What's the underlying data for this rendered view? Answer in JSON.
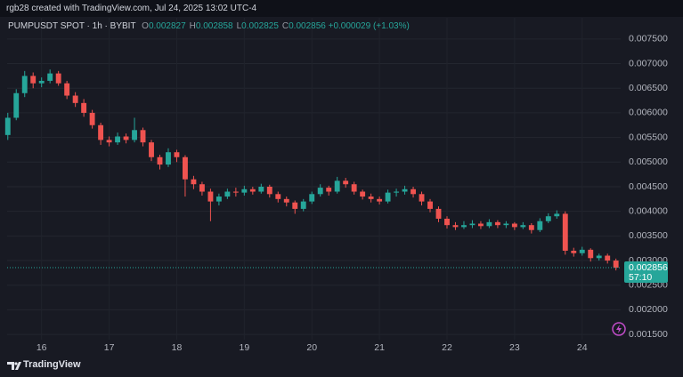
{
  "header": {
    "credit": "rgb28 created with TradingView.com, Jul 24, 2025 13:02 UTC-4"
  },
  "chart_data": {
    "type": "candlestick",
    "symbol": "PUMPUSDT SPOT · 1h · BYBIT",
    "ohlc_legend": [
      {
        "label": "O",
        "value": "0.002827"
      },
      {
        "label": "H",
        "value": "0.002858"
      },
      {
        "label": "L",
        "value": "0.002825"
      },
      {
        "label": "C",
        "value": "0.002856"
      }
    ],
    "change": "+0.000029 (+1.03%)",
    "up_color": "#26a69a",
    "down_color": "#ef5350",
    "x": [
      15.5,
      15.625,
      15.75,
      15.875,
      16,
      16.125,
      16.25,
      16.375,
      16.5,
      16.625,
      16.75,
      16.875,
      17,
      17.125,
      17.25,
      17.375,
      17.5,
      17.625,
      17.75,
      17.875,
      18,
      18.125,
      18.25,
      18.375,
      18.5,
      18.625,
      18.75,
      18.875,
      19,
      19.125,
      19.25,
      19.375,
      19.5,
      19.625,
      19.75,
      19.875,
      20,
      20.125,
      20.25,
      20.375,
      20.5,
      20.625,
      20.75,
      20.875,
      21,
      21.125,
      21.25,
      21.375,
      21.5,
      21.625,
      21.75,
      21.875,
      22,
      22.125,
      22.25,
      22.375,
      22.5,
      22.625,
      22.75,
      22.875,
      23,
      23.125,
      23.25,
      23.375,
      23.5,
      23.625,
      23.75,
      23.875,
      24,
      24.125,
      24.25,
      24.375,
      24.5
    ],
    "ohlc": [
      [
        0.00555,
        0.006,
        0.00545,
        0.0059
      ],
      [
        0.0059,
        0.00648,
        0.00585,
        0.0064
      ],
      [
        0.0064,
        0.00685,
        0.00632,
        0.00675
      ],
      [
        0.00675,
        0.00682,
        0.0065,
        0.0066
      ],
      [
        0.0066,
        0.00672,
        0.00652,
        0.00665
      ],
      [
        0.00665,
        0.00688,
        0.0066,
        0.0068
      ],
      [
        0.0068,
        0.00685,
        0.00655,
        0.0066
      ],
      [
        0.0066,
        0.00665,
        0.00628,
        0.00635
      ],
      [
        0.00635,
        0.00642,
        0.00612,
        0.0062
      ],
      [
        0.0062,
        0.00628,
        0.00592,
        0.006
      ],
      [
        0.006,
        0.00606,
        0.00568,
        0.00575
      ],
      [
        0.00575,
        0.0058,
        0.00535,
        0.00545
      ],
      [
        0.00545,
        0.00552,
        0.00532,
        0.0054
      ],
      [
        0.0054,
        0.0056,
        0.00535,
        0.00552
      ],
      [
        0.00552,
        0.00558,
        0.00538,
        0.00545
      ],
      [
        0.00545,
        0.0059,
        0.0054,
        0.00565
      ],
      [
        0.00565,
        0.0057,
        0.00532,
        0.0054
      ],
      [
        0.0054,
        0.00545,
        0.00502,
        0.0051
      ],
      [
        0.0051,
        0.00515,
        0.00485,
        0.00495
      ],
      [
        0.00495,
        0.00528,
        0.0049,
        0.0052
      ],
      [
        0.0052,
        0.00525,
        0.005,
        0.0051
      ],
      [
        0.0051,
        0.00514,
        0.0043,
        0.00465
      ],
      [
        0.00465,
        0.00472,
        0.00445,
        0.00455
      ],
      [
        0.00455,
        0.0046,
        0.00432,
        0.0044
      ],
      [
        0.0044,
        0.00446,
        0.0038,
        0.0042
      ],
      [
        0.0042,
        0.00436,
        0.00412,
        0.0043
      ],
      [
        0.0043,
        0.00446,
        0.00425,
        0.0044
      ],
      [
        0.0044,
        0.00448,
        0.0043,
        0.00438
      ],
      [
        0.00438,
        0.00452,
        0.00432,
        0.00445
      ],
      [
        0.00445,
        0.0045,
        0.00434,
        0.0044
      ],
      [
        0.0044,
        0.00456,
        0.00436,
        0.0045
      ],
      [
        0.0045,
        0.00454,
        0.00428,
        0.00435
      ],
      [
        0.00435,
        0.0044,
        0.00418,
        0.00425
      ],
      [
        0.00425,
        0.0043,
        0.0041,
        0.00418
      ],
      [
        0.00418,
        0.00422,
        0.00395,
        0.00405
      ],
      [
        0.00405,
        0.00425,
        0.004,
        0.0042
      ],
      [
        0.0042,
        0.0044,
        0.00415,
        0.00435
      ],
      [
        0.00435,
        0.00455,
        0.0043,
        0.00448
      ],
      [
        0.00448,
        0.00452,
        0.00432,
        0.0044
      ],
      [
        0.0044,
        0.0047,
        0.00436,
        0.00462
      ],
      [
        0.00462,
        0.00468,
        0.00448,
        0.00455
      ],
      [
        0.00455,
        0.0046,
        0.00434,
        0.0044
      ],
      [
        0.0044,
        0.00444,
        0.00424,
        0.0043
      ],
      [
        0.0043,
        0.00436,
        0.00418,
        0.00425
      ],
      [
        0.00425,
        0.0043,
        0.00414,
        0.0042
      ],
      [
        0.0042,
        0.00444,
        0.00416,
        0.00438
      ],
      [
        0.00438,
        0.00446,
        0.0043,
        0.0044
      ],
      [
        0.0044,
        0.00452,
        0.00434,
        0.00445
      ],
      [
        0.00445,
        0.0045,
        0.00428,
        0.00435
      ],
      [
        0.00435,
        0.0044,
        0.00412,
        0.0042
      ],
      [
        0.0042,
        0.00425,
        0.00398,
        0.00405
      ],
      [
        0.00405,
        0.0041,
        0.00378,
        0.00385
      ],
      [
        0.00385,
        0.0039,
        0.00365,
        0.00372
      ],
      [
        0.00372,
        0.00378,
        0.00362,
        0.00368
      ],
      [
        0.00368,
        0.0038,
        0.00364,
        0.00372
      ],
      [
        0.00372,
        0.00382,
        0.00366,
        0.00375
      ],
      [
        0.00375,
        0.0038,
        0.00364,
        0.0037
      ],
      [
        0.0037,
        0.00384,
        0.00366,
        0.00378
      ],
      [
        0.00378,
        0.00382,
        0.00366,
        0.00372
      ],
      [
        0.00372,
        0.0038,
        0.00366,
        0.00375
      ],
      [
        0.00375,
        0.00378,
        0.00362,
        0.00368
      ],
      [
        0.00368,
        0.00378,
        0.00364,
        0.00372
      ],
      [
        0.00372,
        0.00376,
        0.00355,
        0.00362
      ],
      [
        0.00362,
        0.00386,
        0.00358,
        0.0038
      ],
      [
        0.0038,
        0.00396,
        0.00376,
        0.0039
      ],
      [
        0.0039,
        0.00402,
        0.00385,
        0.00395
      ],
      [
        0.00395,
        0.004,
        0.00312,
        0.0032
      ],
      [
        0.0032,
        0.00326,
        0.00308,
        0.00315
      ],
      [
        0.00315,
        0.00328,
        0.0031,
        0.00322
      ],
      [
        0.00322,
        0.00325,
        0.00298,
        0.00305
      ],
      [
        0.00305,
        0.00314,
        0.003,
        0.0031
      ],
      [
        0.0031,
        0.00314,
        0.00294,
        0.003
      ],
      [
        0.003,
        0.00304,
        0.0028,
        0.002856
      ]
    ],
    "last_price": {
      "value": 0.002856,
      "label": "0.002856"
    },
    "countdown": "57:10",
    "xlim": [
      15.49,
      24.57
    ],
    "xticks": [
      16,
      17,
      18,
      19,
      20,
      21,
      22,
      23,
      24
    ],
    "ylim": [
      0.00143,
      0.00775
    ],
    "yticks": [
      {
        "value": 0.0015,
        "label": "0.001500"
      },
      {
        "value": 0.002,
        "label": "0.002000"
      },
      {
        "value": 0.0025,
        "label": "0.002500"
      },
      {
        "value": 0.003,
        "label": "0.003000"
      },
      {
        "value": 0.0035,
        "label": "0.003500"
      },
      {
        "value": 0.004,
        "label": "0.004000"
      },
      {
        "value": 0.0045,
        "label": "0.004500"
      },
      {
        "value": 0.005,
        "label": "0.005000"
      },
      {
        "value": 0.0055,
        "label": "0.005500"
      },
      {
        "value": 0.006,
        "label": "0.006000"
      },
      {
        "value": 0.0065,
        "label": "0.006500"
      },
      {
        "value": 0.007,
        "label": "0.007000"
      },
      {
        "value": 0.0075,
        "label": "0.007500"
      }
    ],
    "grid": true
  },
  "footer": {
    "brand": "TradingView"
  }
}
